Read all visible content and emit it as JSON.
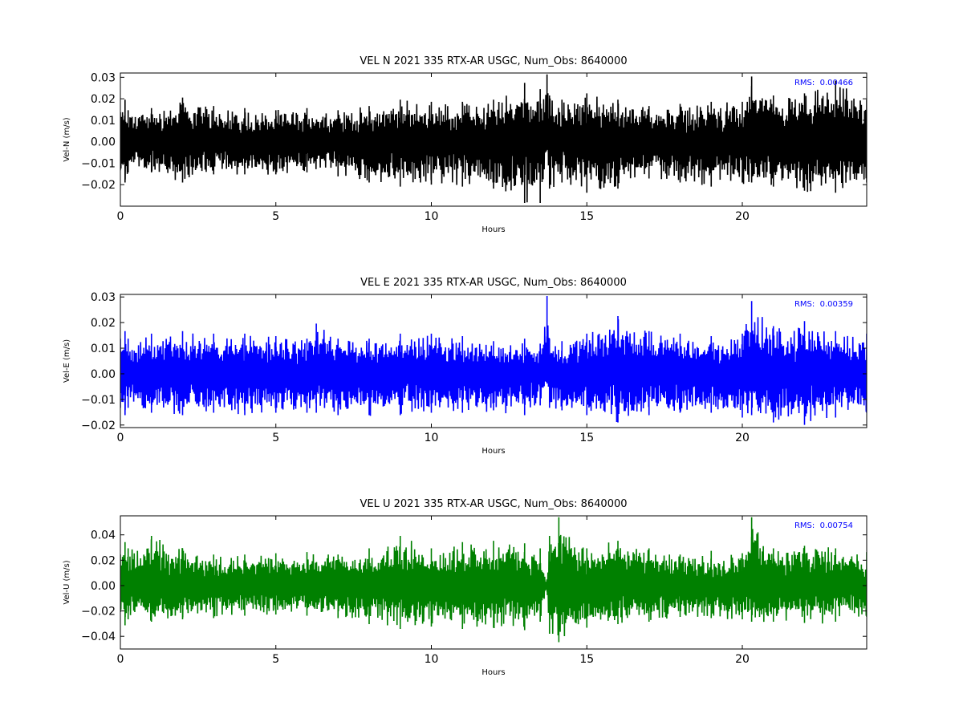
{
  "chart_data": [
    {
      "type": "line",
      "title": "VEL N 2021 335 RTX-AR  USGC, Num_Obs: 8640000",
      "xlabel": "Hours",
      "ylabel": "Vel-N (m/s)",
      "xlim": [
        0,
        24
      ],
      "ylim": [
        -0.03,
        0.032
      ],
      "xticks": [
        0,
        5,
        10,
        15,
        20
      ],
      "xtick_labels": [
        "0",
        "5",
        "10",
        "15",
        "20"
      ],
      "yticks": [
        -0.02,
        -0.01,
        0.0,
        0.01,
        0.02,
        0.03
      ],
      "ytick_labels": [
        "−0.02",
        "−0.01",
        "0.00",
        "0.01",
        "0.02",
        "0.03"
      ],
      "grid": false,
      "color": "#000000",
      "rms_label": "RMS:  0.00466",
      "rms_color": "#0000ff",
      "series": [
        {
          "x": [
            0,
            0.15,
            0.25,
            1,
            2,
            3,
            4,
            5,
            6,
            7,
            8,
            9,
            10,
            11,
            12,
            13,
            13.5,
            13.72,
            13.8,
            14.2,
            15,
            16,
            17,
            18,
            19,
            20,
            20.3,
            21,
            22,
            23,
            24
          ],
          "upper": [
            0.014,
            0.02,
            0.015,
            0.016,
            0.021,
            0.017,
            0.016,
            0.015,
            0.016,
            0.015,
            0.017,
            0.02,
            0.019,
            0.019,
            0.02,
            0.028,
            0.025,
            0.032,
            0.022,
            0.02,
            0.023,
            0.02,
            0.017,
            0.018,
            0.019,
            0.019,
            0.031,
            0.022,
            0.023,
            0.029,
            0.02
          ],
          "lower": [
            -0.014,
            -0.02,
            -0.015,
            -0.015,
            -0.02,
            -0.016,
            -0.016,
            -0.016,
            -0.015,
            -0.017,
            -0.02,
            -0.022,
            -0.021,
            -0.022,
            -0.023,
            -0.03,
            -0.03,
            -0.004,
            -0.023,
            -0.02,
            -0.025,
            -0.023,
            -0.018,
            -0.02,
            -0.022,
            -0.02,
            -0.02,
            -0.022,
            -0.024,
            -0.025,
            -0.02
          ]
        }
      ]
    },
    {
      "type": "line",
      "title": "VEL E 2021 335 RTX-AR  USGC, Num_Obs: 8640000",
      "xlabel": "Hours",
      "ylabel": "Vel-E (m/s)",
      "xlim": [
        0,
        24
      ],
      "ylim": [
        -0.021,
        0.031
      ],
      "xticks": [
        0,
        5,
        10,
        15,
        20
      ],
      "xtick_labels": [
        "0",
        "5",
        "10",
        "15",
        "20"
      ],
      "yticks": [
        -0.02,
        -0.01,
        0.0,
        0.01,
        0.02,
        0.03
      ],
      "ytick_labels": [
        "−0.02",
        "−0.01",
        "0.00",
        "0.01",
        "0.02",
        "0.03"
      ],
      "grid": false,
      "color": "#0000ff",
      "rms_label": "RMS:  0.00359",
      "rms_color": "#0000ff",
      "series": [
        {
          "x": [
            0,
            0.15,
            0.25,
            1,
            2,
            3,
            4,
            5,
            6,
            6.3,
            7,
            8,
            9,
            10,
            11,
            12,
            13,
            13.5,
            13.72,
            13.8,
            14.2,
            15,
            16,
            17,
            18,
            19,
            20,
            20.3,
            21,
            22,
            23,
            24
          ],
          "upper": [
            0.014,
            0.017,
            0.014,
            0.016,
            0.017,
            0.016,
            0.016,
            0.015,
            0.014,
            0.02,
            0.014,
            0.014,
            0.016,
            0.016,
            0.015,
            0.013,
            0.014,
            0.012,
            0.031,
            0.014,
            0.013,
            0.016,
            0.023,
            0.017,
            0.016,
            0.015,
            0.016,
            0.029,
            0.019,
            0.021,
            0.017,
            0.016
          ],
          "lower": [
            -0.014,
            -0.017,
            -0.014,
            -0.016,
            -0.017,
            -0.016,
            -0.017,
            -0.016,
            -0.016,
            -0.016,
            -0.017,
            -0.017,
            -0.017,
            -0.016,
            -0.016,
            -0.015,
            -0.017,
            -0.013,
            -0.004,
            -0.014,
            -0.015,
            -0.017,
            -0.02,
            -0.017,
            -0.016,
            -0.016,
            -0.018,
            -0.017,
            -0.02,
            -0.021,
            -0.018,
            -0.016
          ]
        }
      ]
    },
    {
      "type": "line",
      "title": "VEL U 2021 335 RTX-AR  USGC, Num_Obs: 8640000",
      "xlabel": "Hours",
      "ylabel": "Vel-U (m/s)",
      "xlim": [
        0,
        24
      ],
      "ylim": [
        -0.05,
        0.055
      ],
      "xticks": [
        0,
        5,
        10,
        15,
        20
      ],
      "xtick_labels": [
        "0",
        "5",
        "10",
        "15",
        "20"
      ],
      "yticks": [
        -0.04,
        -0.02,
        0.0,
        0.02,
        0.04
      ],
      "ytick_labels": [
        "−0.04",
        "−0.02",
        "0.00",
        "0.02",
        "0.04"
      ],
      "grid": false,
      "color": "#008000",
      "rms_label": "RMS:  0.00754",
      "rms_color": "#0000ff",
      "series": [
        {
          "x": [
            0,
            0.15,
            0.25,
            1,
            2,
            3,
            4,
            5,
            6,
            7,
            8,
            9,
            10,
            11,
            12,
            13,
            13.5,
            13.72,
            13.8,
            14.1,
            15,
            16,
            17,
            18,
            19,
            20,
            20.3,
            21,
            22,
            23,
            24
          ],
          "upper": [
            0.025,
            0.035,
            0.03,
            0.04,
            0.03,
            0.025,
            0.025,
            0.026,
            0.027,
            0.025,
            0.03,
            0.04,
            0.03,
            0.035,
            0.036,
            0.034,
            0.03,
            0.005,
            0.04,
            0.055,
            0.03,
            0.036,
            0.03,
            0.025,
            0.028,
            0.026,
            0.055,
            0.03,
            0.032,
            0.03,
            0.027
          ],
          "lower": [
            -0.022,
            -0.033,
            -0.028,
            -0.03,
            -0.028,
            -0.027,
            -0.025,
            -0.024,
            -0.025,
            -0.027,
            -0.032,
            -0.036,
            -0.034,
            -0.036,
            -0.035,
            -0.037,
            -0.03,
            -0.005,
            -0.04,
            -0.047,
            -0.035,
            -0.032,
            -0.03,
            -0.026,
            -0.027,
            -0.028,
            -0.03,
            -0.03,
            -0.031,
            -0.03,
            -0.026
          ]
        }
      ]
    }
  ]
}
